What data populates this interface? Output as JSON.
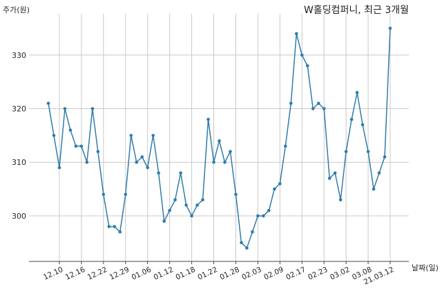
{
  "chart_data": {
    "type": "line",
    "title": "W홀딩컴퍼니, 최근 3개월",
    "xlabel": "날짜(일)",
    "ylabel": "주가(원)",
    "ylim": [
      291.5,
      337.7
    ],
    "yticks": [
      300,
      310,
      320,
      330
    ],
    "ytick_labels": [
      "300",
      "310",
      "320",
      "330"
    ],
    "grid": true,
    "color": "#2e7bab",
    "xticks": [
      {
        "index": 2,
        "label": "12.10"
      },
      {
        "index": 6,
        "label": "12.16"
      },
      {
        "index": 10,
        "label": "12.22"
      },
      {
        "index": 14,
        "label": "12.29"
      },
      {
        "index": 18,
        "label": "01.06"
      },
      {
        "index": 22,
        "label": "01.12"
      },
      {
        "index": 26,
        "label": "01.18"
      },
      {
        "index": 30,
        "label": "01.22"
      },
      {
        "index": 34,
        "label": "01.28"
      },
      {
        "index": 38,
        "label": "02.03"
      },
      {
        "index": 42,
        "label": "02.09"
      },
      {
        "index": 46,
        "label": "02.17"
      },
      {
        "index": 50,
        "label": "02.23"
      },
      {
        "index": 54,
        "label": "03.02"
      },
      {
        "index": 58,
        "label": "03.08"
      },
      {
        "index": 62,
        "label": "21.03.12"
      }
    ],
    "values": [
      321,
      315,
      309,
      320,
      316,
      313,
      313,
      310,
      320,
      312,
      304,
      298,
      298,
      297,
      304,
      315,
      310,
      311,
      309,
      315,
      308,
      299,
      301,
      303,
      308,
      302,
      300,
      302,
      303,
      318,
      310,
      314,
      310,
      312,
      304,
      295,
      294,
      297,
      300,
      300,
      301,
      305,
      306,
      313,
      321,
      334,
      330,
      328,
      320,
      321,
      320,
      307,
      308,
      303,
      312,
      318,
      323,
      317,
      312,
      305,
      308,
      311,
      335
    ]
  }
}
